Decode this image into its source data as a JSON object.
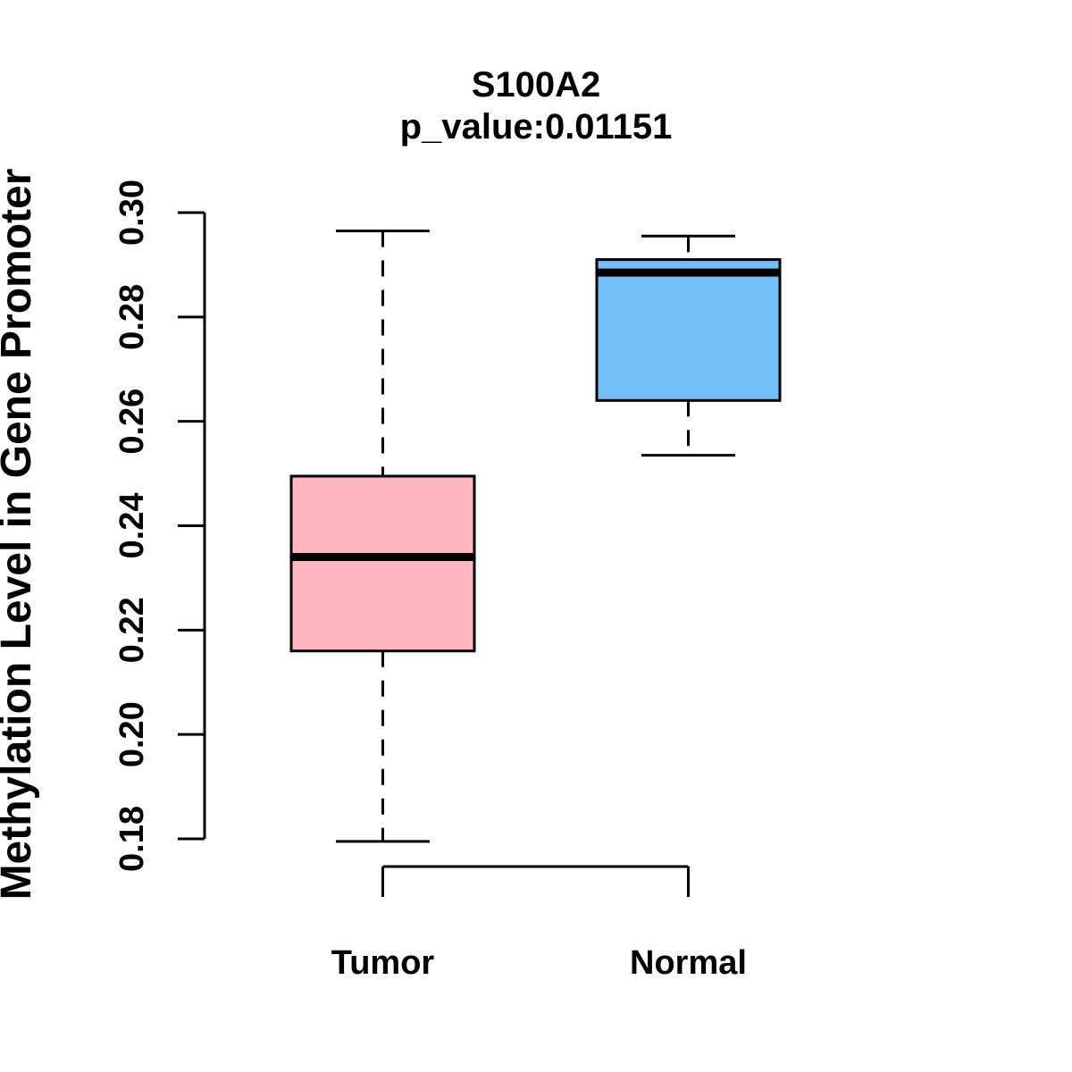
{
  "colors": {
    "background": "#ffffff",
    "axis": "#000000",
    "box_border": "#000000",
    "median": "#000000",
    "tumor_fill": "#FFB6C1",
    "normal_fill": "#73BFF7"
  },
  "chart_data": {
    "type": "boxplot",
    "title": "S100A2",
    "subtitle": "p_value:0.01151",
    "ylabel": "Methylation Level in Gene Promoter",
    "xlabel": "",
    "categories": [
      "Tumor",
      "Normal"
    ],
    "series": [
      {
        "name": "Tumor",
        "color": "#FFB6C1",
        "min": 0.1795,
        "q1": 0.216,
        "median": 0.234,
        "q3": 0.2495,
        "max": 0.2965
      },
      {
        "name": "Normal",
        "color": "#73BFF7",
        "min": 0.2535,
        "q1": 0.264,
        "median": 0.2885,
        "q3": 0.291,
        "max": 0.2955
      }
    ],
    "ylim": [
      0.18,
      0.3
    ],
    "yticks": [
      0.18,
      0.2,
      0.22,
      0.24,
      0.26,
      0.28,
      0.3
    ],
    "ytick_labels": [
      "0.18",
      "0.20",
      "0.22",
      "0.24",
      "0.26",
      "0.28",
      "0.30"
    ],
    "grid": false,
    "legend": "none",
    "whisker_style": "dashed"
  }
}
